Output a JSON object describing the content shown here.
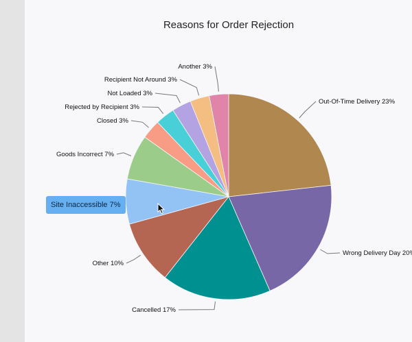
{
  "chart_data": {
    "type": "pie",
    "title": "Reasons for Order Rejection",
    "slices": [
      {
        "label": "Out-Of-Time Delivery",
        "pct_label": "23%",
        "value": 23,
        "color": "#b0874f"
      },
      {
        "label": "Wrong Delivery Day",
        "pct_label": "20%",
        "value": 20,
        "color": "#7867a7"
      },
      {
        "label": "Cancelled",
        "pct_label": "17%",
        "value": 17,
        "color": "#009090"
      },
      {
        "label": "Other",
        "pct_label": "10%",
        "value": 10,
        "color": "#b46653"
      },
      {
        "label": "Site Inaccessible",
        "pct_label": "7%",
        "value": 7,
        "color": "#93c3f5"
      },
      {
        "label": "Goods Incorrect",
        "pct_label": "7%",
        "value": 7,
        "color": "#9ccc8a"
      },
      {
        "label": "Closed",
        "pct_label": "3%",
        "value": 3,
        "color": "#f89c86"
      },
      {
        "label": "Rejected by Recipient",
        "pct_label": "3%",
        "value": 3,
        "color": "#49cfd8"
      },
      {
        "label": "Not Loaded",
        "pct_label": "3%",
        "value": 3,
        "color": "#b3a3e2"
      },
      {
        "label": "Recipient Not Around",
        "pct_label": "3%",
        "value": 3,
        "color": "#f4bd82"
      },
      {
        "label": "Another",
        "pct_label": "3%",
        "value": 3,
        "color": "#e184a9"
      }
    ],
    "tooltip": {
      "label": "Site Inaccessible",
      "pct_label": "7%",
      "color": "#66b0f2"
    },
    "legend": "none"
  }
}
